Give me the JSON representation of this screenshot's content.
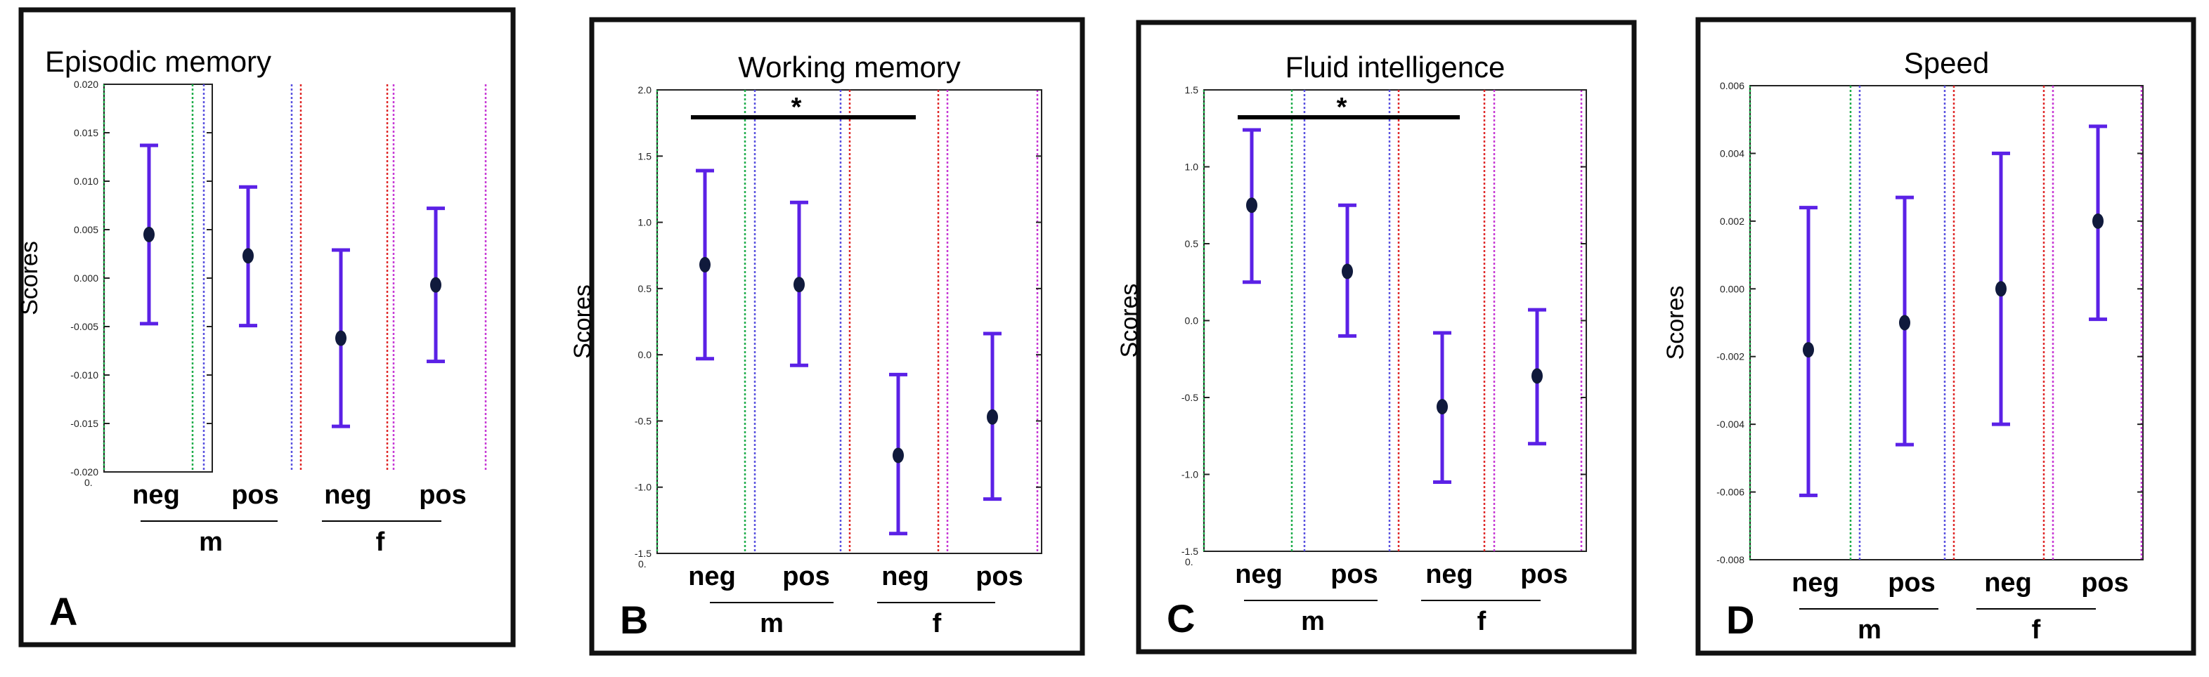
{
  "chart_data": [
    {
      "type": "errorbar",
      "panel_label": "A",
      "title": "Episodic memory",
      "ylabel": "Scores",
      "ylim": [
        -0.02,
        0.02
      ],
      "yticks": [
        -0.02,
        -0.015,
        -0.01,
        -0.005,
        0.0,
        0.005,
        0.01,
        0.015,
        0.02
      ],
      "ytick_labels": [
        "-0.020",
        "-0.015",
        "-0.010",
        "-0.005",
        "0.000",
        "0.005",
        "0.010",
        "0.015",
        "0.020"
      ],
      "x_origin_label": "0.",
      "categories": [
        "neg",
        "pos",
        "neg",
        "pos"
      ],
      "groups": [
        "m",
        "f"
      ],
      "points": [
        {
          "x": 1,
          "y": 0.0045,
          "low": -0.0047,
          "high": 0.0137
        },
        {
          "x": 2,
          "y": 0.0023,
          "low": -0.0049,
          "high": 0.0094
        },
        {
          "x": 3,
          "y": -0.0062,
          "low": -0.0153,
          "high": 0.0029
        },
        {
          "x": 4,
          "y": -0.0007,
          "low": -0.0086,
          "high": 0.0072
        }
      ],
      "significance": []
    },
    {
      "type": "errorbar",
      "panel_label": "B",
      "title": "Working memory",
      "ylabel": "Scores",
      "ylim": [
        -1.5,
        2.0
      ],
      "yticks": [
        -1.5,
        -1.0,
        -0.5,
        0.0,
        0.5,
        1.0,
        1.5,
        2.0
      ],
      "ytick_labels": [
        "-1.5",
        "-1.0",
        "-0.5",
        "0.0",
        "0.5",
        "1.0",
        "1.5",
        "2.0"
      ],
      "x_origin_label": "0.",
      "categories": [
        "neg",
        "pos",
        "neg",
        "pos"
      ],
      "groups": [
        "m",
        "f"
      ],
      "points": [
        {
          "x": 1,
          "y": 0.68,
          "low": -0.03,
          "high": 1.39
        },
        {
          "x": 2,
          "y": 0.53,
          "low": -0.08,
          "high": 1.15
        },
        {
          "x": 3,
          "y": -0.76,
          "low": -1.35,
          "high": -0.15
        },
        {
          "x": 4,
          "y": -0.47,
          "low": -1.09,
          "high": 0.16
        }
      ],
      "significance": [
        {
          "from": 1,
          "to": 3,
          "label": "*"
        }
      ]
    },
    {
      "type": "errorbar",
      "panel_label": "C",
      "title": "Fluid intelligence",
      "ylabel": "Scores",
      "ylim": [
        -1.5,
        1.5
      ],
      "yticks": [
        -1.5,
        -1.0,
        -0.5,
        0.0,
        0.5,
        1.0,
        1.5
      ],
      "ytick_labels": [
        "-1.5",
        "-1.0",
        "-0.5",
        "0.0",
        "0.5",
        "1.0",
        "1.5"
      ],
      "x_origin_label": "0.",
      "categories": [
        "neg",
        "pos",
        "neg",
        "pos"
      ],
      "groups": [
        "m",
        "f"
      ],
      "points": [
        {
          "x": 1,
          "y": 0.75,
          "low": 0.25,
          "high": 1.24
        },
        {
          "x": 2,
          "y": 0.32,
          "low": -0.1,
          "high": 0.75
        },
        {
          "x": 3,
          "y": -0.56,
          "low": -1.05,
          "high": -0.08
        },
        {
          "x": 4,
          "y": -0.36,
          "low": -0.8,
          "high": 0.07
        }
      ],
      "significance": [
        {
          "from": 1,
          "to": 3,
          "label": "*"
        }
      ]
    },
    {
      "type": "errorbar",
      "panel_label": "D",
      "title": "Speed",
      "ylabel": "Scores",
      "ylim": [
        -0.008,
        0.006
      ],
      "yticks": [
        -0.008,
        -0.006,
        -0.004,
        -0.002,
        0.0,
        0.002,
        0.004,
        0.006
      ],
      "ytick_labels": [
        "-0.008",
        "-0.006",
        "-0.004",
        "-0.002",
        "0.000",
        "0.002",
        "0.004",
        "0.006"
      ],
      "x_origin_label": "",
      "categories": [
        "neg",
        "pos",
        "neg",
        "pos"
      ],
      "groups": [
        "m",
        "f"
      ],
      "points": [
        {
          "x": 1,
          "y": -0.0018,
          "low": -0.0061,
          "high": 0.0024
        },
        {
          "x": 2,
          "y": -0.001,
          "low": -0.0046,
          "high": 0.0027
        },
        {
          "x": 3,
          "y": 0.0,
          "low": -0.004,
          "high": 0.004
        },
        {
          "x": 4,
          "y": 0.002,
          "low": -0.0009,
          "high": 0.0048
        }
      ],
      "significance": []
    }
  ],
  "colors": {
    "errorbar": "#5b21e6",
    "marker": "#101a3c",
    "frame": "#111111",
    "text": "#000000",
    "vline_green": "#1fae4a",
    "vline_blue": "#5a52e0",
    "vline_red": "#e02a2a",
    "vline_magenta": "#c83ad6"
  }
}
